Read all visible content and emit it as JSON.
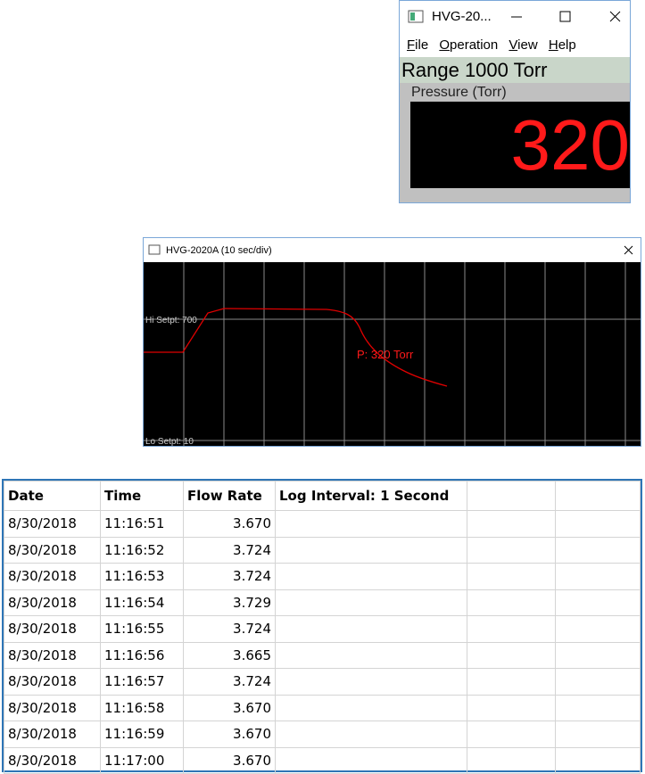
{
  "gauge_window": {
    "title": "HVG-20...",
    "menu": [
      "File",
      "Operation",
      "View",
      "Help"
    ],
    "range": "Range 1000 Torr",
    "label": "Pressure (Torr)",
    "reading": "320"
  },
  "trend_window": {
    "title": "HVG-2020A (10 sec/div)",
    "hi_setpoint": "Hi Setpt: 700",
    "lo_setpoint": "Lo Setpt: 10",
    "annotation": "P: 320 Torr"
  },
  "table": {
    "headers": [
      "Date",
      "Time",
      "Flow Rate",
      "Log Interval: 1 Second"
    ],
    "rows": [
      [
        "8/30/2018",
        "11:16:51",
        "3.670"
      ],
      [
        "8/30/2018",
        "11:16:52",
        "3.724"
      ],
      [
        "8/30/2018",
        "11:16:53",
        "3.724"
      ],
      [
        "8/30/2018",
        "11:16:54",
        "3.729"
      ],
      [
        "8/30/2018",
        "11:16:55",
        "3.724"
      ],
      [
        "8/30/2018",
        "11:16:56",
        "3.665"
      ],
      [
        "8/30/2018",
        "11:16:57",
        "3.724"
      ],
      [
        "8/30/2018",
        "11:16:58",
        "3.670"
      ],
      [
        "8/30/2018",
        "11:16:59",
        "3.670"
      ],
      [
        "8/30/2018",
        "11:17:00",
        "3.670"
      ]
    ]
  }
}
